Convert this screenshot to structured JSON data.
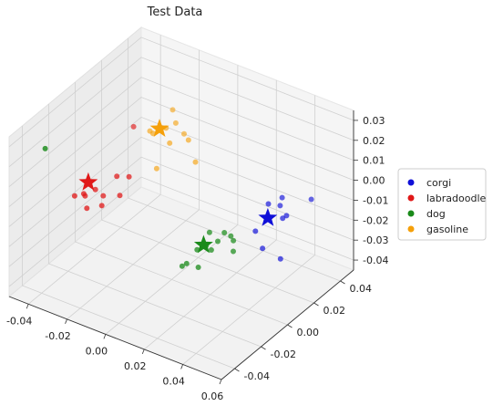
{
  "chart_data": {
    "type": "scatter",
    "title": "Test Data",
    "projection": "3d",
    "grid": true,
    "legend_placement": "right",
    "xlim": [
      -0.05,
      0.06
    ],
    "ylim": [
      -0.05,
      0.05
    ],
    "zlim": [
      -0.045,
      0.035
    ],
    "x_ticks": [
      "-0.04",
      "-0.02",
      "0.00",
      "0.02",
      "0.04",
      "0.06"
    ],
    "y_ticks": [
      "-0.04",
      "-0.02",
      "0.00",
      "0.02",
      "0.04"
    ],
    "z_ticks": [
      "-0.04",
      "-0.03",
      "-0.02",
      "-0.01",
      "0.00",
      "0.01",
      "0.02",
      "0.03"
    ],
    "series": [
      {
        "name": "corgi",
        "color": "#1010d8",
        "centroid": [
          0.045,
          0.007,
          -0.001
        ],
        "points": [
          [
            0.052,
            0.008,
            0.001
          ],
          [
            0.05,
            0.009,
            0.006
          ],
          [
            0.046,
            0.006,
            0.007
          ],
          [
            0.049,
            0.012,
            0.008
          ],
          [
            0.054,
            0.008,
            0.003
          ],
          [
            0.045,
            0.003,
            -0.014
          ],
          [
            0.055,
            0.002,
            -0.015
          ],
          [
            0.06,
            0.018,
            0.008
          ],
          [
            0.042,
            0.002,
            -0.006
          ],
          [
            0.048,
            0.004,
            0.002
          ]
        ]
      },
      {
        "name": "labradoodle",
        "color": "#e01818",
        "centroid": [
          -0.035,
          -0.012,
          -0.003
        ],
        "points": [
          [
            -0.04,
            -0.015,
            -0.01
          ],
          [
            -0.038,
            -0.01,
            -0.012
          ],
          [
            -0.036,
            -0.014,
            -0.008
          ],
          [
            -0.032,
            -0.011,
            -0.006
          ],
          [
            -0.03,
            -0.008,
            -0.01
          ],
          [
            -0.028,
            -0.012,
            -0.012
          ],
          [
            -0.025,
            -0.005,
            0.0
          ],
          [
            -0.018,
            -0.006,
            0.003
          ],
          [
            -0.02,
            -0.01,
            -0.005
          ],
          [
            -0.03,
            0.015,
            0.012
          ],
          [
            -0.033,
            -0.016,
            -0.013
          ]
        ]
      },
      {
        "name": "dog",
        "color": "#1a8a1a",
        "centroid": [
          0.022,
          -0.008,
          -0.015
        ],
        "points": [
          [
            0.024,
            -0.009,
            -0.014
          ],
          [
            0.026,
            -0.008,
            -0.016
          ],
          [
            0.028,
            -0.006,
            -0.012
          ],
          [
            0.02,
            -0.01,
            -0.017
          ],
          [
            0.023,
            -0.005,
            -0.01
          ],
          [
            0.03,
            -0.004,
            -0.008
          ],
          [
            0.034,
            -0.003,
            -0.011
          ],
          [
            0.036,
            -0.006,
            -0.014
          ],
          [
            0.018,
            -0.015,
            -0.022
          ],
          [
            0.015,
            -0.014,
            -0.025
          ],
          [
            0.022,
            -0.012,
            -0.024
          ],
          [
            -0.045,
            -0.03,
            0.02
          ],
          [
            0.032,
            -0.002,
            -0.01
          ]
        ]
      },
      {
        "name": "gasoline",
        "color": "#f5a00a",
        "centroid": [
          -0.02,
          0.02,
          0.012
        ],
        "points": [
          [
            -0.018,
            0.022,
            0.012
          ],
          [
            -0.022,
            0.018,
            0.01
          ],
          [
            -0.015,
            0.025,
            0.014
          ],
          [
            -0.01,
            0.024,
            0.011
          ],
          [
            -0.02,
            0.03,
            0.016
          ],
          [
            -0.025,
            0.02,
            0.009
          ],
          [
            -0.012,
            0.016,
            0.01
          ],
          [
            -0.005,
            0.02,
            0.012
          ],
          [
            0.0,
            0.018,
            0.004
          ],
          [
            -0.016,
            0.012,
            -0.002
          ]
        ]
      }
    ]
  }
}
